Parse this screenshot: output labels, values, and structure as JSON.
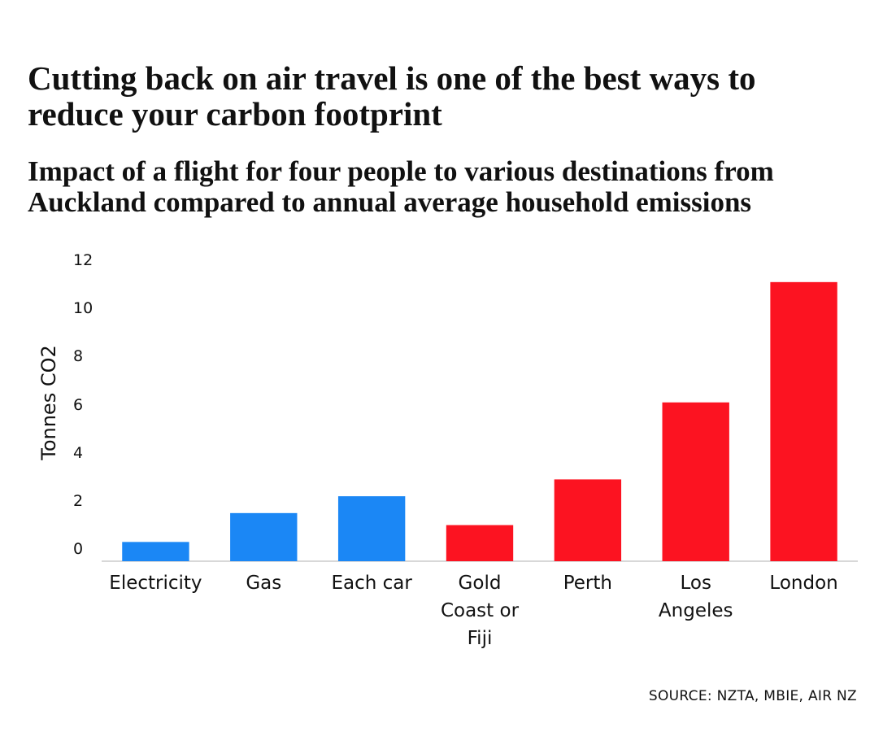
{
  "chart_data": {
    "type": "bar",
    "title": "Cutting back on air travel is one of the best ways to reduce your carbon footprint",
    "subtitle": "Impact of a flight for four people to various destinations from Auckland compared to annual average household emissions",
    "y_label": "Tonnes CO2",
    "categories": [
      "Electricity",
      "Gas",
      "Each car",
      "Gold Coast or Fiji",
      "Perth",
      "Los Angeles",
      "London"
    ],
    "values": [
      0.8,
      2.0,
      2.7,
      1.5,
      3.4,
      6.6,
      11.6
    ],
    "colors": [
      "#1b87f5",
      "#1b87f5",
      "#1b87f5",
      "#fc1321",
      "#fc1321",
      "#fc1321",
      "#fc1321"
    ],
    "ylim": [
      0,
      12
    ],
    "yticks": [
      0,
      2,
      4,
      6,
      8,
      10,
      12
    ],
    "grid": false,
    "source": "SOURCE: NZTA, MBIE, AIR NZ"
  }
}
